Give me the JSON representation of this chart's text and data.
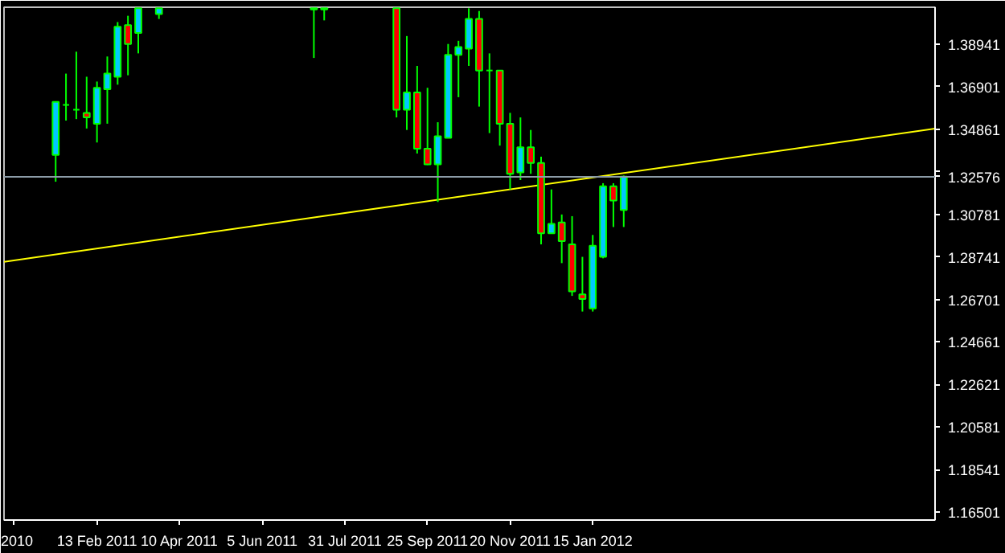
{
  "chart_data": {
    "type": "candlestick",
    "xlim": [
      "2010-12-12",
      "2012-09-03"
    ],
    "xticks": [
      {
        "value": "2010-12-19",
        "label": "2010"
      },
      {
        "value": "2011-02-13",
        "label": "13 Feb 2011"
      },
      {
        "value": "2011-04-10",
        "label": "10 Apr 2011"
      },
      {
        "value": "2011-06-05",
        "label": "5 Jun 2011"
      },
      {
        "value": "2011-07-31",
        "label": "31 Jul 2011"
      },
      {
        "value": "2011-09-25",
        "label": "25 Sep 2011"
      },
      {
        "value": "2011-11-20",
        "label": "20 Nov 2011"
      },
      {
        "value": "2012-01-15",
        "label": "15 Jan 2012"
      }
    ],
    "ylim": [
      1.1613,
      1.407
    ],
    "yticks": [
      1.16501,
      1.18541,
      1.20581,
      1.22621,
      1.24661,
      1.26701,
      1.28741,
      1.30781,
      {
        "value": 1.32821,
        "label": null
      },
      1.34861,
      1.36901,
      1.38941
    ],
    "series": [
      {
        "colors": [
          "#00c8ff",
          "#00ff00",
          "#00ff00",
          "#ff0000",
          "#00c8ff",
          "#00c8ff",
          "#00c8ff",
          "#ff0000",
          "#00c8ff",
          "#00c8ff",
          "#ff0000",
          "#00c8ff",
          "#ff0000",
          "#00c8ff",
          "#ff0000",
          "#ff0000",
          "#00c8ff",
          "#00c8ff",
          "#00c8ff",
          "#00c8ff",
          "#ff0000",
          "#00ff00",
          "#ff0000",
          "#ff0000",
          "#00c8ff",
          "#ff0000",
          "#ff0000",
          "#00c8ff",
          "#ff0000",
          "#ff0000",
          "#ff0000",
          "#00c8ff",
          "#00c8ff",
          "#ff0000",
          "#00c8ff"
        ],
        "x": [
          "2011-01-16",
          "2011-01-23",
          "2011-01-30",
          "2011-02-06",
          "2011-02-13",
          "2011-02-20",
          "2011-02-27",
          "2011-03-06",
          "2011-03-13",
          "2011-03-27",
          "2011-07-10",
          "2011-07-17",
          "2011-09-04",
          "2011-09-11",
          "2011-09-18",
          "2011-09-25",
          "2011-10-02",
          "2011-10-09",
          "2011-10-16",
          "2011-10-23",
          "2011-10-30",
          "2011-11-06",
          "2011-11-13",
          "2011-11-20",
          "2011-11-27",
          "2011-12-04",
          "2011-12-11",
          "2011-12-18",
          "2011-12-25",
          "2012-01-01",
          "2012-01-08",
          "2012-01-15",
          "2012-01-22",
          "2012-01-29",
          "2012-02-05"
        ],
        "ohlc": [
          [
            1.3362,
            1.3617,
            1.3234,
            1.3617
          ],
          [
            1.3602,
            1.3752,
            1.3527,
            1.3602
          ],
          [
            1.3579,
            1.3857,
            1.3534,
            1.3579
          ],
          [
            1.3564,
            1.3737,
            1.3489,
            1.3542
          ],
          [
            1.3512,
            1.3714,
            1.3422,
            1.3684
          ],
          [
            1.3677,
            1.3834,
            1.3512,
            1.3752
          ],
          [
            1.3737,
            1.3999,
            1.3699,
            1.3977
          ],
          [
            1.3984,
            1.4029,
            1.3744,
            1.3894
          ],
          [
            1.3947,
            1.4065,
            1.3849,
            1.4065
          ],
          [
            1.4037,
            1.4065,
            1.4014,
            1.4065
          ],
          [
            1.4065,
            1.4065,
            1.3827,
            1.4059
          ],
          [
            1.4059,
            1.4065,
            1.4007,
            1.4065
          ],
          [
            1.4065,
            1.4065,
            1.3542,
            1.3579
          ],
          [
            1.3579,
            1.3932,
            1.3482,
            1.3662
          ],
          [
            1.3662,
            1.3789,
            1.3369,
            1.3392
          ],
          [
            1.3392,
            1.3684,
            1.3314,
            1.3317
          ],
          [
            1.3317,
            1.3519,
            1.3137,
            1.3452
          ],
          [
            1.3444,
            1.3894,
            1.3444,
            1.3842
          ],
          [
            1.3842,
            1.3909,
            1.3639,
            1.3879
          ],
          [
            1.3872,
            1.4065,
            1.3789,
            1.4014
          ],
          [
            1.4014,
            1.4052,
            1.3594,
            1.3767
          ],
          [
            1.3767,
            1.3849,
            1.3467,
            1.3767
          ],
          [
            1.3767,
            1.3767,
            1.3407,
            1.3512
          ],
          [
            1.3512,
            1.3564,
            1.3197,
            1.3272
          ],
          [
            1.3279,
            1.3542,
            1.3242,
            1.3399
          ],
          [
            1.3399,
            1.3482,
            1.3272,
            1.3324
          ],
          [
            1.3324,
            1.3354,
            1.2934,
            1.2987
          ],
          [
            1.2987,
            1.3197,
            1.2987,
            1.3032
          ],
          [
            1.3039,
            1.3077,
            1.2844,
            1.2949
          ],
          [
            1.2934,
            1.3069,
            1.2687,
            1.2709
          ],
          [
            1.2694,
            1.2874,
            1.2612,
            1.2672
          ],
          [
            1.2627,
            1.2979,
            1.2612,
            1.2927
          ],
          [
            1.2874,
            1.3227,
            1.2867,
            1.3212
          ],
          [
            1.3212,
            1.3227,
            1.3017,
            1.3144
          ],
          [
            1.3099,
            1.3264,
            1.3017,
            1.3258
          ]
        ]
      },
      {
        "type": "line",
        "color": "#ffff00",
        "x": [
          "2010-12-12",
          "2012-09-03"
        ],
        "values": [
          1.285,
          1.3489
        ]
      }
    ],
    "ref_lines": [
      {
        "axis": "y",
        "value": 1.32576,
        "label": "1.32576",
        "color": "#8c9ca8"
      }
    ]
  }
}
